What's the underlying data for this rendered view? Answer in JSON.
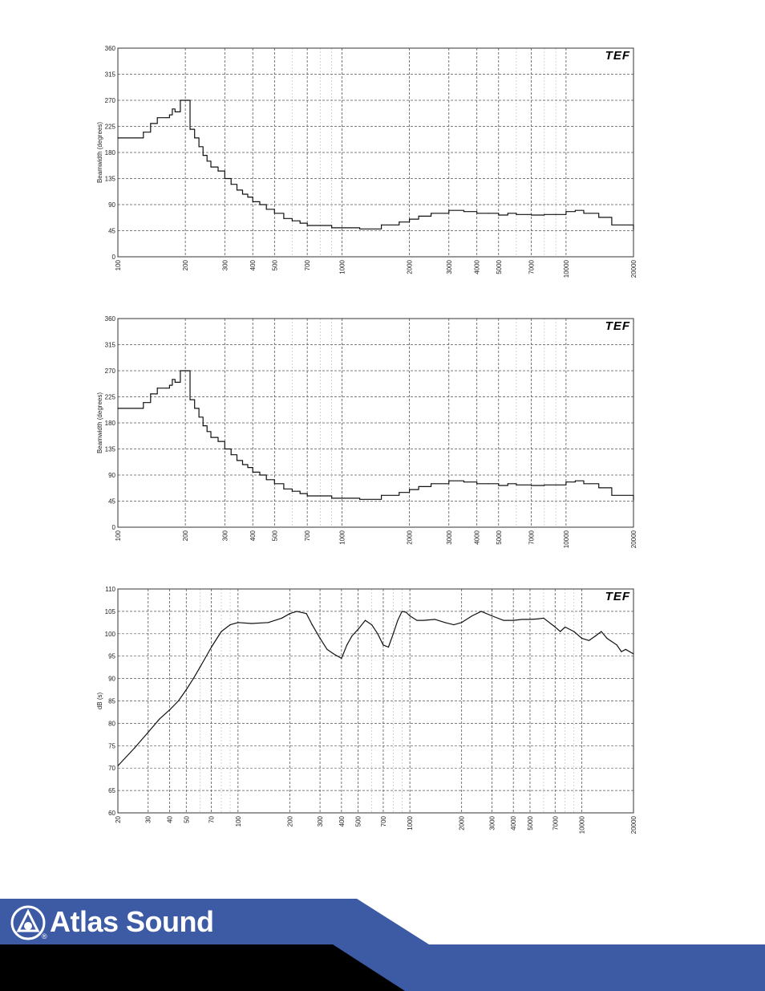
{
  "colors": {
    "grid_major": "#555555",
    "grid_minor": "#bbbbbb",
    "trace": "#111111",
    "footer_blue": "#3d5aa5",
    "footer_black": "#000000"
  },
  "logo_chart": "TEF",
  "brand": {
    "name": "Atlas Sound",
    "reg": "®"
  },
  "chart_data": [
    {
      "type": "line",
      "ylabel": "Beamwidth (degrees)",
      "xscale": "log",
      "xlim": [
        100,
        20000
      ],
      "ylim": [
        0,
        360
      ],
      "yticks": [
        0,
        45,
        90,
        135,
        180,
        225,
        270,
        315,
        360
      ],
      "xticks": [
        100,
        200,
        300,
        400,
        500,
        700,
        1000,
        2000,
        3000,
        4000,
        5000,
        7000,
        10000,
        20000
      ],
      "x": [
        100,
        120,
        130,
        140,
        150,
        165,
        170,
        175,
        180,
        190,
        200,
        205,
        210,
        220,
        230,
        240,
        250,
        260,
        280,
        300,
        320,
        340,
        360,
        380,
        400,
        430,
        460,
        500,
        550,
        600,
        650,
        700,
        800,
        900,
        1000,
        1200,
        1500,
        1800,
        2000,
        2200,
        2500,
        3000,
        3500,
        4000,
        4500,
        5000,
        5500,
        6000,
        7000,
        8000,
        9000,
        10000,
        11000,
        12000,
        14000,
        16000,
        20000
      ],
      "y": [
        205,
        205,
        215,
        230,
        240,
        240,
        245,
        255,
        250,
        270,
        270,
        270,
        220,
        205,
        190,
        175,
        165,
        155,
        148,
        135,
        125,
        115,
        108,
        103,
        95,
        90,
        82,
        75,
        66,
        62,
        58,
        54,
        54,
        50,
        50,
        48,
        55,
        60,
        65,
        70,
        75,
        80,
        78,
        75,
        75,
        72,
        75,
        73,
        72,
        73,
        73,
        78,
        80,
        75,
        68,
        55,
        47
      ]
    },
    {
      "type": "line",
      "ylabel": "Beamwidth (degrees)",
      "xscale": "log",
      "xlim": [
        100,
        20000
      ],
      "ylim": [
        0,
        360
      ],
      "yticks": [
        0,
        45,
        90,
        135,
        180,
        225,
        270,
        315,
        360
      ],
      "xticks": [
        100,
        200,
        300,
        400,
        500,
        700,
        1000,
        2000,
        3000,
        4000,
        5000,
        7000,
        10000,
        20000
      ],
      "x": [
        100,
        120,
        130,
        140,
        150,
        165,
        170,
        175,
        180,
        190,
        200,
        205,
        210,
        220,
        230,
        240,
        250,
        260,
        280,
        300,
        320,
        340,
        360,
        380,
        400,
        430,
        460,
        500,
        550,
        600,
        650,
        700,
        800,
        900,
        1000,
        1200,
        1500,
        1800,
        2000,
        2200,
        2500,
        3000,
        3500,
        4000,
        4500,
        5000,
        5500,
        6000,
        7000,
        8000,
        9000,
        10000,
        11000,
        12000,
        14000,
        16000,
        20000
      ],
      "y": [
        205,
        205,
        215,
        230,
        240,
        240,
        245,
        255,
        250,
        270,
        270,
        270,
        220,
        205,
        190,
        175,
        165,
        155,
        148,
        135,
        125,
        115,
        108,
        103,
        95,
        90,
        82,
        75,
        66,
        62,
        58,
        54,
        54,
        50,
        50,
        48,
        55,
        60,
        65,
        70,
        75,
        80,
        78,
        75,
        75,
        72,
        75,
        73,
        72,
        73,
        73,
        78,
        80,
        75,
        68,
        55,
        47
      ]
    },
    {
      "type": "line",
      "ylabel": "dB (s)",
      "xscale": "log",
      "xlim": [
        20,
        20000
      ],
      "ylim": [
        60,
        110
      ],
      "yticks": [
        60,
        65,
        70,
        75,
        80,
        85,
        90,
        95,
        100,
        105,
        110
      ],
      "xticks": [
        20,
        30,
        40,
        50,
        70,
        100,
        200,
        300,
        400,
        500,
        700,
        1000,
        2000,
        3000,
        4000,
        5000,
        7000,
        10000,
        20000
      ],
      "x": [
        20,
        25,
        30,
        35,
        40,
        45,
        50,
        55,
        60,
        70,
        80,
        90,
        100,
        120,
        150,
        180,
        200,
        220,
        250,
        270,
        300,
        330,
        360,
        400,
        430,
        460,
        500,
        550,
        600,
        650,
        700,
        750,
        800,
        850,
        900,
        950,
        1000,
        1100,
        1200,
        1400,
        1600,
        1800,
        2000,
        2300,
        2600,
        3000,
        3500,
        4000,
        4500,
        5000,
        5500,
        6000,
        7000,
        7500,
        8000,
        9000,
        10000,
        11000,
        12000,
        13000,
        14000,
        16000,
        17000,
        18000,
        19000,
        20000
      ],
      "y": [
        70.5,
        74.5,
        78,
        81,
        83,
        85,
        87.5,
        90,
        92.5,
        97,
        100.5,
        102,
        102.5,
        102.3,
        102.5,
        103.5,
        104.5,
        105,
        104.5,
        102,
        99,
        96.5,
        95.5,
        94.5,
        97.5,
        99.5,
        101,
        103,
        102,
        100,
        97.5,
        97,
        100,
        103,
        105,
        104.8,
        104,
        103,
        103,
        103.2,
        102.5,
        102,
        102.5,
        104,
        105,
        104,
        103,
        103,
        103.2,
        103.2,
        103.3,
        103.5,
        101.5,
        100.5,
        101.5,
        100.5,
        99,
        98.5,
        99.5,
        100.5,
        99,
        97.5,
        96,
        96.5,
        96,
        95.5
      ]
    }
  ]
}
